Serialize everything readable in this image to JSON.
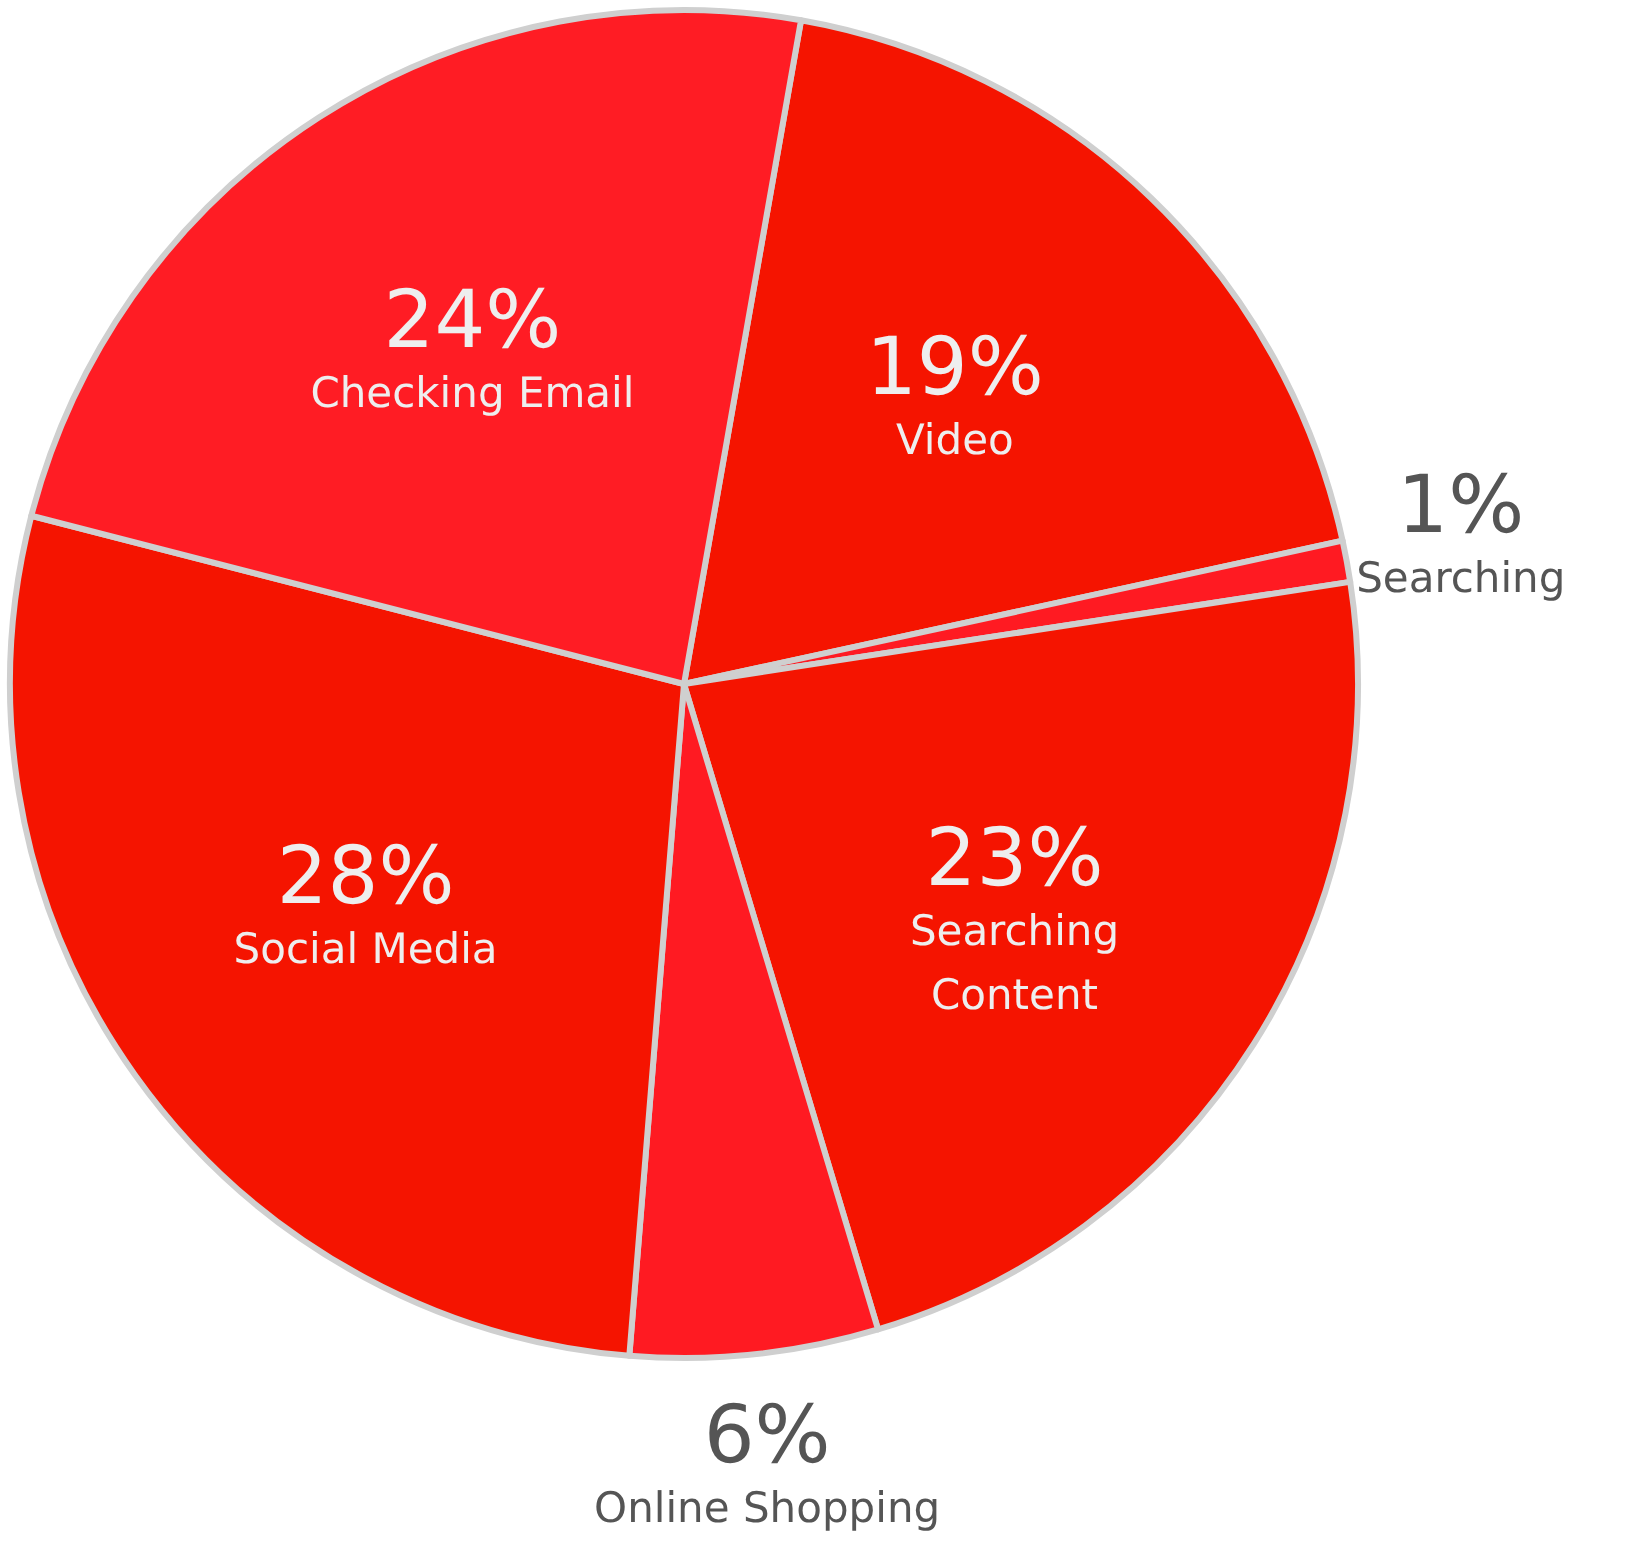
{
  "chart_data": {
    "type": "pie",
    "categories": [
      "Video",
      "Searching",
      "Searching Content",
      "Online Shopping",
      "Social Media",
      "Checking Email"
    ],
    "values": [
      19,
      1,
      23,
      6,
      28,
      24
    ],
    "value_labels": [
      "19%",
      "1%",
      "23%",
      "6%",
      "28%",
      "24%"
    ],
    "colors": [
      "#f51400",
      "#ff1a22",
      "#f51400",
      "#ff1a22",
      "#f51400",
      "#ff1c24"
    ]
  }
}
